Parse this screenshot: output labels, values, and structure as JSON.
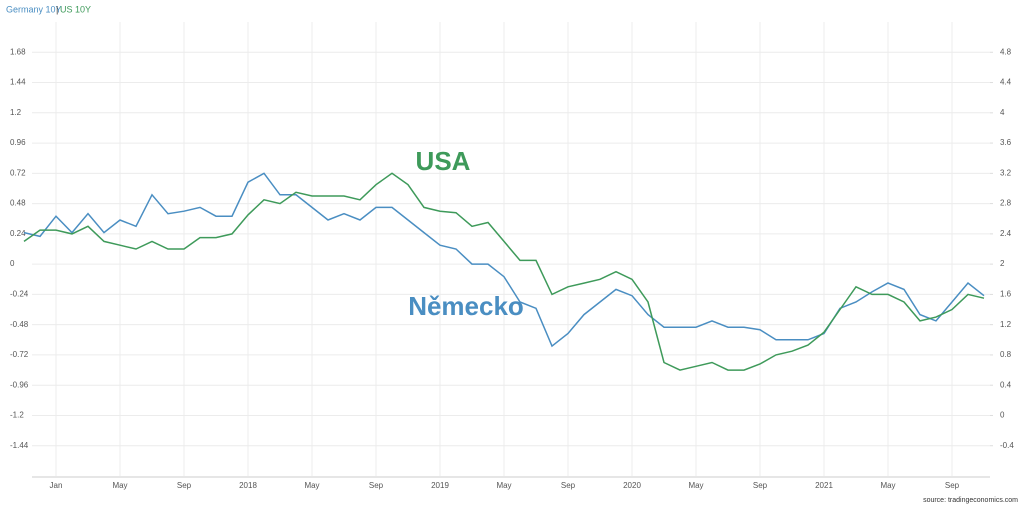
{
  "chart_data": {
    "type": "line",
    "legend": {
      "separator": "|"
    },
    "annotations": [
      {
        "text": "USA"
      },
      {
        "text": "Německo"
      }
    ],
    "source": "source: tradingeconomics.com",
    "grid": true,
    "x": [
      "2016-11",
      "2016-12",
      "2017-01",
      "2017-02",
      "2017-03",
      "2017-04",
      "2017-05",
      "2017-06",
      "2017-07",
      "2017-08",
      "2017-09",
      "2017-10",
      "2017-11",
      "2017-12",
      "2018-01",
      "2018-02",
      "2018-03",
      "2018-04",
      "2018-05",
      "2018-06",
      "2018-07",
      "2018-08",
      "2018-09",
      "2018-10",
      "2018-11",
      "2018-12",
      "2019-01",
      "2019-02",
      "2019-03",
      "2019-04",
      "2019-05",
      "2019-06",
      "2019-07",
      "2019-08",
      "2019-09",
      "2019-10",
      "2019-11",
      "2019-12",
      "2020-01",
      "2020-02",
      "2020-03",
      "2020-04",
      "2020-05",
      "2020-06",
      "2020-07",
      "2020-08",
      "2020-09",
      "2020-10",
      "2020-11",
      "2020-12",
      "2021-01",
      "2021-02",
      "2021-03",
      "2021-04",
      "2021-05",
      "2021-06",
      "2021-07",
      "2021-08",
      "2021-09",
      "2021-10",
      "2021-11"
    ],
    "xlim": [
      "2016-11",
      "2021-12"
    ],
    "xticks": [
      {
        "value": "2017-01",
        "label": "Jan"
      },
      {
        "value": "2017-05",
        "label": "May"
      },
      {
        "value": "2017-09",
        "label": "Sep"
      },
      {
        "value": "2018-01",
        "label": "2018"
      },
      {
        "value": "2018-05",
        "label": "May"
      },
      {
        "value": "2018-09",
        "label": "Sep"
      },
      {
        "value": "2019-01",
        "label": "2019"
      },
      {
        "value": "2019-05",
        "label": "May"
      },
      {
        "value": "2019-09",
        "label": "Sep"
      },
      {
        "value": "2020-01",
        "label": "2020"
      },
      {
        "value": "2020-05",
        "label": "May"
      },
      {
        "value": "2020-09",
        "label": "Sep"
      },
      {
        "value": "2021-01",
        "label": "2021"
      },
      {
        "value": "2021-05",
        "label": "May"
      },
      {
        "value": "2021-09",
        "label": "Sep"
      }
    ],
    "ylim": [
      -1.68,
      1.92
    ],
    "yticks": [
      1.68,
      1.44,
      1.2,
      0.96,
      0.72,
      0.48,
      0.24,
      0,
      -0.24,
      -0.48,
      -0.72,
      -0.96,
      -1.2,
      -1.44
    ],
    "y2lim": [
      -0.8,
      5.2
    ],
    "y2ticks": [
      4.8,
      4.4,
      4,
      3.6,
      3.2,
      2.8,
      2.4,
      2,
      1.6,
      1.2,
      0.8,
      0.4,
      0,
      -0.4
    ],
    "series": [
      {
        "name": "Germany 10Y",
        "color": "#4a8ec2",
        "axis": "y",
        "values": [
          0.25,
          0.22,
          0.38,
          0.25,
          0.4,
          0.25,
          0.35,
          0.3,
          0.55,
          0.4,
          0.42,
          0.45,
          0.38,
          0.38,
          0.65,
          0.72,
          0.55,
          0.55,
          0.45,
          0.35,
          0.4,
          0.35,
          0.45,
          0.45,
          0.35,
          0.25,
          0.15,
          0.12,
          0.0,
          0.0,
          -0.1,
          -0.3,
          -0.35,
          -0.65,
          -0.55,
          -0.4,
          -0.3,
          -0.2,
          -0.25,
          -0.4,
          -0.5,
          -0.5,
          -0.5,
          -0.45,
          -0.5,
          -0.5,
          -0.52,
          -0.6,
          -0.6,
          -0.6,
          -0.55,
          -0.35,
          -0.3,
          -0.22,
          -0.15,
          -0.2,
          -0.4,
          -0.45,
          -0.3,
          -0.15,
          -0.25
        ]
      },
      {
        "name": "US 10Y",
        "color": "#3e9a5a",
        "axis": "y2",
        "values": [
          2.3,
          2.45,
          2.45,
          2.4,
          2.5,
          2.3,
          2.25,
          2.2,
          2.3,
          2.2,
          2.2,
          2.35,
          2.35,
          2.4,
          2.65,
          2.85,
          2.8,
          2.95,
          2.9,
          2.9,
          2.9,
          2.85,
          3.05,
          3.2,
          3.05,
          2.75,
          2.7,
          2.68,
          2.5,
          2.55,
          2.3,
          2.05,
          2.05,
          1.6,
          1.7,
          1.75,
          1.8,
          1.9,
          1.8,
          1.5,
          0.7,
          0.6,
          0.65,
          0.7,
          0.6,
          0.6,
          0.68,
          0.8,
          0.85,
          0.93,
          1.1,
          1.4,
          1.7,
          1.6,
          1.6,
          1.5,
          1.25,
          1.3,
          1.4,
          1.6,
          1.55
        ]
      }
    ]
  }
}
